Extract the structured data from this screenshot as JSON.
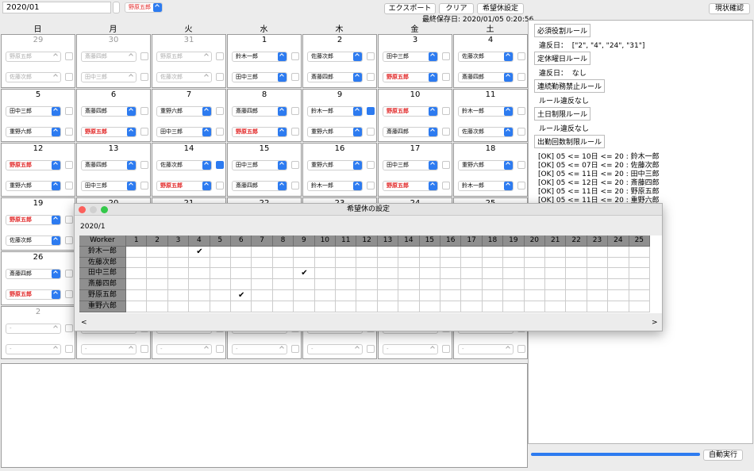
{
  "toolbar": {
    "month": "2020/01",
    "worker_select": "野原五郎",
    "buttons": [
      "エクスポート",
      "クリア",
      "希望休設定"
    ],
    "status_button": "現状確認",
    "last_saved": "最終保存日: 2020/01/05 0:20:56"
  },
  "calendar": {
    "weekdays": [
      "日",
      "月",
      "火",
      "水",
      "木",
      "金",
      "土"
    ],
    "weeks": [
      [
        {
          "day": 29,
          "muted": true,
          "slots": [
            {
              "name": "野原五郎"
            },
            {
              "name": "佐藤次郎"
            }
          ]
        },
        {
          "day": 30,
          "muted": true,
          "slots": [
            {
              "name": "斎藤四郎"
            },
            {
              "name": "田中三郎"
            }
          ]
        },
        {
          "day": 31,
          "muted": true,
          "slots": [
            {
              "name": "野原五郎"
            },
            {
              "name": "佐藤次郎"
            }
          ]
        },
        {
          "day": 1,
          "slots": [
            {
              "name": "鈴木一郎"
            },
            {
              "name": "田中三郎"
            }
          ]
        },
        {
          "day": 2,
          "slots": [
            {
              "name": "佐藤次郎"
            },
            {
              "name": "斎藤四郎"
            }
          ]
        },
        {
          "day": 3,
          "slots": [
            {
              "name": "田中三郎"
            },
            {
              "name": "野原五郎",
              "red": true
            }
          ]
        },
        {
          "day": 4,
          "slots": [
            {
              "name": "佐藤次郎"
            },
            {
              "name": "斎藤四郎"
            }
          ]
        }
      ],
      [
        {
          "day": 5,
          "slots": [
            {
              "name": "田中三郎"
            },
            {
              "name": "重野六郎"
            }
          ]
        },
        {
          "day": 6,
          "slots": [
            {
              "name": "斎藤四郎"
            },
            {
              "name": "野原五郎",
              "red": true
            }
          ]
        },
        {
          "day": 7,
          "slots": [
            {
              "name": "重野六郎"
            },
            {
              "name": "田中三郎"
            }
          ]
        },
        {
          "day": 8,
          "slots": [
            {
              "name": "斎藤四郎"
            },
            {
              "name": "野原五郎",
              "red": true
            }
          ]
        },
        {
          "day": 9,
          "slots": [
            {
              "name": "鈴木一郎",
              "checked": true
            },
            {
              "name": "重野六郎"
            }
          ]
        },
        {
          "day": 10,
          "slots": [
            {
              "name": "野原五郎",
              "red": true
            },
            {
              "name": "斎藤四郎"
            }
          ]
        },
        {
          "day": 11,
          "slots": [
            {
              "name": "鈴木一郎"
            },
            {
              "name": "佐藤次郎"
            }
          ]
        }
      ],
      [
        {
          "day": 12,
          "slots": [
            {
              "name": "野原五郎",
              "red": true
            },
            {
              "name": "重野六郎"
            }
          ]
        },
        {
          "day": 13,
          "slots": [
            {
              "name": "斎藤四郎"
            },
            {
              "name": "田中三郎"
            }
          ]
        },
        {
          "day": 14,
          "slots": [
            {
              "name": "佐藤次郎",
              "checked": true
            },
            {
              "name": "野原五郎",
              "red": true
            }
          ]
        },
        {
          "day": 15,
          "slots": [
            {
              "name": "田中三郎"
            },
            {
              "name": "斎藤四郎"
            }
          ]
        },
        {
          "day": 16,
          "slots": [
            {
              "name": "重野六郎"
            },
            {
              "name": "鈴木一郎"
            }
          ]
        },
        {
          "day": 17,
          "slots": [
            {
              "name": "田中三郎"
            },
            {
              "name": "野原五郎",
              "red": true
            }
          ]
        },
        {
          "day": 18,
          "slots": [
            {
              "name": "重野六郎"
            },
            {
              "name": "鈴木一郎"
            }
          ]
        }
      ],
      [
        {
          "day": 19,
          "slots": [
            {
              "name": "野原五郎",
              "red": true
            },
            {
              "name": "佐藤次郎"
            }
          ]
        },
        {
          "day": 20
        },
        {
          "day": 21
        },
        {
          "day": 22
        },
        {
          "day": 23
        },
        {
          "day": 24
        },
        {
          "day": 25
        }
      ],
      [
        {
          "day": 26,
          "slots": [
            {
              "name": "斎藤四郎"
            },
            {
              "name": "野原五郎",
              "red": true
            }
          ]
        },
        {},
        {},
        {},
        {},
        {},
        {}
      ],
      [
        {
          "day": 2,
          "muted": true,
          "slots": [
            {
              "name": "-"
            },
            {
              "name": "-"
            }
          ]
        },
        {
          "muted": true,
          "slots": [
            {
              "name": "-"
            },
            {
              "name": "-"
            }
          ]
        },
        {
          "muted": true,
          "slots": [
            {
              "name": "-"
            },
            {
              "name": "-"
            }
          ]
        },
        {
          "muted": true,
          "slots": [
            {
              "name": "-"
            },
            {
              "name": "-"
            }
          ]
        },
        {
          "muted": true,
          "slots": [
            {
              "name": "-"
            },
            {
              "name": "-"
            }
          ]
        },
        {
          "muted": true,
          "slots": [
            {
              "name": "-"
            },
            {
              "name": "-"
            }
          ]
        },
        {
          "muted": true,
          "slots": [
            {
              "name": "-"
            },
            {
              "name": "-"
            }
          ]
        }
      ]
    ]
  },
  "rules": [
    {
      "title": "必須役割ルール",
      "lines": [
        "違反日：  [\"2\", \"4\", \"24\", \"31\"]"
      ]
    },
    {
      "title": "定休曜日ルール",
      "lines": [
        "違反日：  なし"
      ]
    },
    {
      "title": "連続勤務禁止ルール",
      "lines": [
        "ルール違反なし"
      ]
    },
    {
      "title": "土日制限ルール",
      "lines": [
        "ルール違反なし"
      ]
    },
    {
      "title": "出勤回数制限ルール",
      "lines": [
        "[OK] 05 <= 10日 <= 20 : 鈴木一郎",
        "[OK] 05 <= 07日 <= 20 : 佐藤次郎",
        "[OK] 05 <= 11日 <= 20 : 田中三郎",
        "[OK] 05 <= 12日 <= 20 : 斎藤四郎",
        "[OK] 05 <= 11日 <= 20 : 野原五郎",
        "[OK] 05 <= 11日 <= 20 : 重野六郎"
      ]
    }
  ],
  "run_button": "自動実行",
  "dialog": {
    "title": "希望休の設定",
    "month": "2020/1",
    "name_header": "Worker Name",
    "days": [
      1,
      2,
      3,
      4,
      5,
      6,
      7,
      8,
      9,
      10,
      11,
      12,
      13,
      14,
      15,
      16,
      17,
      18,
      19,
      20,
      21,
      22,
      23,
      24,
      25
    ],
    "mark": "✔",
    "workers": [
      {
        "name": "鈴木一郎",
        "off": [
          4
        ]
      },
      {
        "name": "佐藤次郎",
        "off": []
      },
      {
        "name": "田中三郎",
        "off": [
          9
        ]
      },
      {
        "name": "斎藤四郎",
        "off": []
      },
      {
        "name": "野原五郎",
        "off": [
          6
        ]
      },
      {
        "name": "重野六郎",
        "off": []
      }
    ],
    "scroll_left": "<",
    "scroll_right": ">"
  }
}
